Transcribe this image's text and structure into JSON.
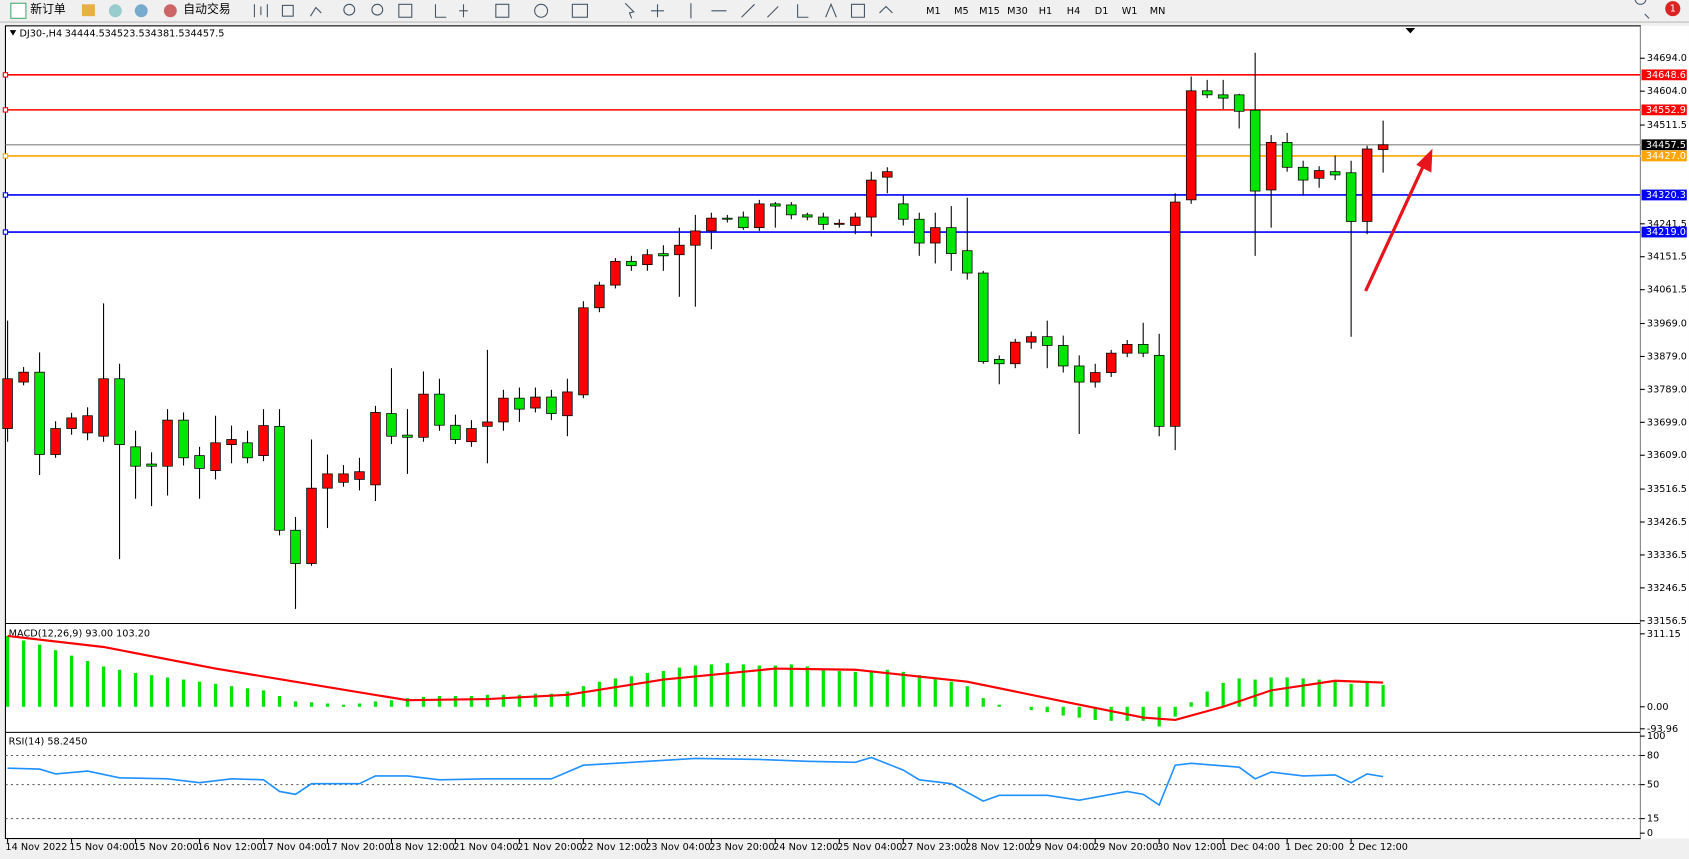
{
  "toolbar": {
    "new_order": "新订单",
    "auto_trading": "自动交易",
    "timeframes": [
      "M1",
      "M5",
      "M15",
      "M30",
      "H1",
      "H4",
      "D1",
      "W1",
      "MN"
    ]
  },
  "notification_count": 1,
  "chart_data": [
    {
      "type": "candlestick",
      "title": "DJ30-,H4",
      "header_values": [
        34444.5,
        34523.5,
        34381.5,
        34457.5
      ],
      "up_color": "#ff0000",
      "down_color": "#00e600",
      "ylim": [
        33150.6,
        34782.5
      ],
      "yticks": [
        {
          "value": 34694,
          "label": "34694.0"
        },
        {
          "value": 34604,
          "label": "34604.0"
        },
        34511.5,
        34241.5,
        34151.5,
        34061.5,
        {
          "value": 33969,
          "label": "33969.0"
        },
        {
          "value": 33879,
          "label": "33879.0"
        },
        {
          "value": 33789,
          "label": "33789.0"
        },
        {
          "value": 33699,
          "label": "33699.0"
        },
        {
          "value": 33609,
          "label": "33609.0"
        },
        33516.5,
        33426.5,
        33336.5,
        33246.5,
        33156.5
      ],
      "levels": {
        "values": [
          34648.6,
          34552.9,
          34457.5,
          {
            "value": 34427,
            "label": "34427.0"
          },
          34320.3,
          {
            "value": 34219,
            "label": "34219.0"
          }
        ],
        "colors": [
          "#ff0000",
          "#ff0000",
          "#000000",
          "#ffa500",
          "#0000ff",
          "#0000ff"
        ]
      },
      "categories": [
        "14 Nov 2022",
        null,
        null,
        null,
        "15 Nov 04:00",
        null,
        null,
        null,
        "15 Nov 20:00",
        null,
        null,
        null,
        "16 Nov 12:00",
        null,
        null,
        null,
        "17 Nov 04:00",
        null,
        null,
        null,
        "17 Nov 20:00",
        null,
        null,
        null,
        "18 Nov 12:00",
        null,
        null,
        null,
        "21 Nov 04:00",
        null,
        null,
        null,
        "21 Nov 20:00",
        null,
        null,
        null,
        "22 Nov 12:00",
        null,
        null,
        null,
        "23 Nov 04:00",
        null,
        null,
        null,
        "23 Nov 20:00",
        null,
        null,
        null,
        "24 Nov 12:00",
        null,
        null,
        null,
        "25 Nov 04:00",
        null,
        null,
        null,
        "27 Nov 23:00",
        null,
        null,
        null,
        "28 Nov 12:00",
        null,
        null,
        null,
        "29 Nov 04:00",
        null,
        null,
        null,
        "29 Nov 20:00",
        null,
        null,
        null,
        "30 Nov 12:00",
        null,
        null,
        null,
        "1 Dec 04:00",
        null,
        null,
        null,
        "1 Dec 20:00",
        null,
        null,
        null,
        "2 Dec 12:00",
        null,
        null
      ],
      "open": [
        33682,
        33809,
        33836,
        33611,
        33682,
        33670,
        33661,
        33818,
        33632,
        33585,
        33579,
        33705,
        33608,
        33567,
        33638,
        33643,
        33608,
        33688,
        33404,
        33313,
        33519,
        33535,
        33543,
        33528,
        33723,
        33664,
        33658,
        33776,
        33691,
        33646,
        33688,
        33700,
        33765,
        33738,
        33768,
        33717,
        33774,
        34012,
        34074,
        34139,
        34130,
        34160,
        34157,
        34183,
        34222,
        34257,
        34260,
        34231,
        34296,
        34293,
        34266,
        34260,
        34240,
        34237,
        34260,
        34369,
        34296,
        34254,
        34189,
        34231,
        34168,
        34107,
        33871,
        33859,
        33918,
        33933,
        33909,
        33853,
        33809,
        33835,
        33888,
        33912,
        33882,
        33688,
        34307,
        34605,
        34594,
        34594,
        34552,
        34334,
        34464,
        34396,
        34366,
        34384,
        34381,
        34248,
        34444.5
      ],
      "high": [
        33977,
        33850,
        33890,
        33702,
        33725,
        33740,
        34024,
        33859,
        33676,
        33617,
        33735,
        33726,
        33632,
        33717,
        33690,
        33676,
        33735,
        33735,
        33440,
        33652,
        33611,
        33582,
        33602,
        33744,
        33847,
        33735,
        33838,
        33818,
        33720,
        33705,
        33897,
        33788,
        33794,
        33794,
        33788,
        33818,
        34030,
        34083,
        34148,
        34154,
        34172,
        34183,
        34231,
        34266,
        34272,
        34266,
        34275,
        34307,
        34301,
        34301,
        34272,
        34272,
        34254,
        34272,
        34384,
        34396,
        34319,
        34272,
        34272,
        34290,
        34313,
        34113,
        33882,
        33927,
        33947,
        33977,
        33936,
        33882,
        33859,
        33897,
        33924,
        33971,
        33941,
        34325,
        34644,
        34635,
        34635,
        34597,
        34709,
        34484,
        34490,
        34414,
        34399,
        34428,
        34414,
        34455,
        34523.5
      ],
      "low": [
        33646,
        33800,
        33555,
        33602,
        33665,
        33650,
        33646,
        33325,
        33490,
        33470,
        33499,
        33581,
        33490,
        33543,
        33587,
        33587,
        33593,
        33390,
        33189,
        33307,
        33410,
        33523,
        33513,
        33484,
        33640,
        33558,
        33646,
        33676,
        33640,
        33632,
        33587,
        33676,
        33700,
        33726,
        33705,
        33661,
        33765,
        34000,
        34065,
        34113,
        34113,
        34113,
        34042,
        34015,
        34172,
        34245,
        34225,
        34222,
        34231,
        34254,
        34251,
        34225,
        34231,
        34213,
        34207,
        34325,
        34237,
        34154,
        34133,
        34113,
        34089,
        33859,
        33803,
        33847,
        33900,
        33847,
        33835,
        33667,
        33794,
        33823,
        33877,
        33877,
        33661,
        33623,
        34296,
        34585,
        34555,
        34502,
        34154,
        34231,
        34384,
        34319,
        34340,
        34361,
        33933,
        34213,
        34381.5
      ],
      "close": [
        33818,
        33836,
        33611,
        33682,
        33711,
        33717,
        33818,
        33638,
        33579,
        33579,
        33705,
        33602,
        33573,
        33643,
        33652,
        33602,
        33690,
        33404,
        33313,
        33519,
        33558,
        33558,
        33564,
        33726,
        33661,
        33658,
        33776,
        33691,
        33652,
        33682,
        33700,
        33765,
        33735,
        33768,
        33723,
        33782,
        34012,
        34074,
        34139,
        34127,
        34157,
        34154,
        34183,
        34222,
        34257,
        34254,
        34231,
        34296,
        34290,
        34266,
        34260,
        34240,
        34243,
        34260,
        34361,
        34384,
        34254,
        34189,
        34231,
        34160,
        34107,
        33865,
        33859,
        33918,
        33933,
        33909,
        33853,
        33809,
        33835,
        33888,
        33912,
        33888,
        33688,
        34301,
        34605,
        34594,
        34585,
        34549,
        34331,
        34464,
        34396,
        34361,
        34387,
        34375,
        34248,
        34446,
        34457.5
      ]
    },
    {
      "type": "macd",
      "title": "MACD(12,26,9) 93.00 103.20",
      "ylim": [
        -102.2,
        348.3
      ],
      "yticks": [
        311.15,
        {
          "value": 0,
          "label": "0.00"
        },
        -93.96
      ],
      "histogram": {
        "color": "#00e600",
        "values": [
          302,
          283,
          265,
          241,
          218,
          195,
          172,
          158,
          144,
          135,
          125,
          116,
          107,
          98,
          88,
          79,
          70,
          46,
          23,
          19,
          14,
          9,
          14,
          23,
          28,
          37,
          42,
          46,
          46,
          46,
          51,
          51,
          51,
          56,
          56,
          65,
          88,
          107,
          121,
          130,
          144,
          153,
          167,
          176,
          181,
          186,
          181,
          176,
          176,
          181,
          172,
          163,
          153,
          149,
          153,
          158,
          149,
          135,
          121,
          107,
          88,
          37,
          9,
          0,
          -14,
          -23,
          -37,
          -46,
          -56,
          -60,
          -60,
          -60,
          -84,
          -42,
          19,
          65,
          102,
          121,
          116,
          125,
          125,
          121,
          116,
          111,
          98,
          107,
          93
        ]
      },
      "signal": {
        "color": "#ff0000",
        "x": [
          0,
          6,
          13,
          20,
          25,
          30,
          35,
          41,
          48,
          53,
          60,
          66,
          71,
          73,
          76,
          79,
          83,
          86
        ],
        "values": [
          302,
          255,
          163,
          84,
          28,
          33,
          51,
          116,
          163,
          158,
          107,
          23,
          -46,
          -56,
          0,
          70,
          111,
          103.2
        ]
      }
    },
    {
      "type": "line",
      "title": "RSI(14) 58.2450",
      "ylim": [
        -4.4,
        103.3
      ],
      "yticks": [
        100,
        80,
        50,
        15,
        0
      ],
      "color": "#1e90ff",
      "x": [
        0,
        2,
        3,
        5,
        7,
        10,
        12,
        14,
        16,
        17,
        18,
        19,
        22,
        23,
        25,
        27,
        30,
        34,
        36,
        38,
        43,
        47,
        50,
        53,
        54,
        56,
        57,
        59,
        61,
        62,
        65,
        67,
        70,
        71,
        72,
        73,
        74,
        77,
        78,
        79,
        81,
        83,
        84,
        85,
        86
      ],
      "values": [
        67,
        66,
        61,
        64,
        57,
        56,
        52,
        56,
        55,
        43,
        40,
        51,
        51,
        59,
        59,
        55,
        56,
        56,
        70,
        72,
        77,
        76,
        74,
        73,
        78,
        65,
        55,
        51,
        33,
        39,
        39,
        34,
        43,
        40,
        29,
        70,
        72,
        68,
        56,
        63,
        59,
        60,
        52,
        61,
        58.245
      ]
    }
  ]
}
